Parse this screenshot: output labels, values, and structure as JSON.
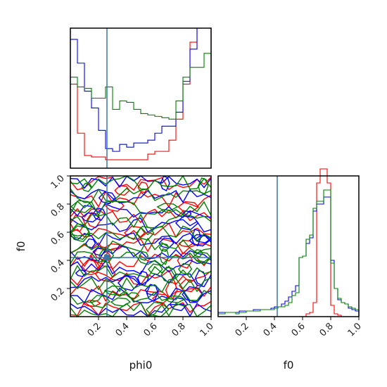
{
  "chart_data": [
    {
      "type": "histogram",
      "panel": "phi0-marginal",
      "xlim": [
        0,
        1
      ],
      "truth_x": 0.26,
      "bins": 20,
      "series": [
        {
          "color": "#ff0000",
          "values": [
            0.6,
            0.25,
            0.09,
            0.08,
            0.08,
            0.06,
            0.06,
            0.06,
            0.06,
            0.06,
            0.06,
            0.1,
            0.12,
            0.12,
            0.2,
            0.35,
            0.6,
            0.9,
            1.0,
            1.0
          ]
        },
        {
          "color": "#0000ff",
          "values": [
            0.92,
            0.75,
            0.55,
            0.43,
            0.27,
            0.14,
            0.12,
            0.17,
            0.15,
            0.18,
            0.18,
            0.2,
            0.25,
            0.3,
            0.3,
            0.4,
            0.62,
            0.85,
            1.0,
            1.0
          ]
        },
        {
          "color": "#008000",
          "values": [
            0.65,
            0.58,
            0.57,
            0.5,
            0.5,
            0.58,
            0.42,
            0.48,
            0.47,
            0.42,
            0.39,
            0.38,
            0.37,
            0.36,
            0.35,
            0.48,
            0.65,
            0.72,
            0.72,
            0.82
          ]
        }
      ]
    },
    {
      "type": "contour",
      "panel": "phi0-f0-joint",
      "xlabel": "phi0",
      "ylabel": "f0",
      "xlim": [
        0,
        1
      ],
      "ylim": [
        0,
        1
      ],
      "truth": {
        "x": 0.26,
        "y": 0.42
      },
      "xticks": [
        0.2,
        0.4,
        0.6,
        0.8,
        1.0
      ],
      "xtick_labels": [
        "0.2",
        "0.4",
        "0.6",
        "0.8",
        "1.0"
      ],
      "yticks": [
        0.2,
        0.4,
        0.6,
        0.8,
        1.0
      ],
      "ytick_labels": [
        "0.2",
        "0.4",
        "0.6",
        "0.8",
        "1.0"
      ],
      "series_colors": [
        "#ff0000",
        "#0000ff",
        "#008000"
      ]
    },
    {
      "type": "histogram",
      "panel": "f0-marginal",
      "xlabel": "f0",
      "xlim": [
        0,
        1
      ],
      "truth_x": 0.42,
      "bins": 40,
      "xticks": [
        0.2,
        0.4,
        0.6,
        0.8,
        1.0
      ],
      "xtick_labels": [
        "0.2",
        "0.4",
        "0.6",
        "0.8",
        "1.0"
      ],
      "series": [
        {
          "color": "#ff0000",
          "values": [
            0,
            0,
            0,
            0,
            0,
            0,
            0,
            0,
            0,
            0,
            0,
            0,
            0,
            0,
            0,
            0,
            0,
            0,
            0,
            0,
            0,
            0,
            0,
            0,
            0,
            0.02,
            0.03,
            0.1,
            0.95,
            1.05,
            1.05,
            0.95,
            0.08,
            0.02,
            0.01,
            0,
            0,
            0,
            0,
            0
          ]
        },
        {
          "color": "#0000ff",
          "values": [
            0.03,
            0.03,
            0.03,
            0.03,
            0.03,
            0.03,
            0.04,
            0.04,
            0.04,
            0.04,
            0.05,
            0.05,
            0.05,
            0.05,
            0.05,
            0.06,
            0.07,
            0.07,
            0.09,
            0.11,
            0.14,
            0.18,
            0.22,
            0.42,
            0.43,
            0.52,
            0.56,
            0.75,
            0.8,
            0.8,
            0.85,
            0.85,
            0.4,
            0.2,
            0.12,
            0.1,
            0.09,
            0.06,
            0.05,
            0.04
          ]
        },
        {
          "color": "#008000",
          "values": [
            0.02,
            0.02,
            0.03,
            0.03,
            0.03,
            0.02,
            0.03,
            0.03,
            0.04,
            0.04,
            0.04,
            0.04,
            0.05,
            0.05,
            0.05,
            0.05,
            0.06,
            0.07,
            0.07,
            0.08,
            0.1,
            0.15,
            0.17,
            0.42,
            0.43,
            0.55,
            0.58,
            0.77,
            0.82,
            0.82,
            0.9,
            0.9,
            0.38,
            0.2,
            0.13,
            0.1,
            0.09,
            0.07,
            0.06,
            0.05
          ]
        }
      ]
    }
  ]
}
